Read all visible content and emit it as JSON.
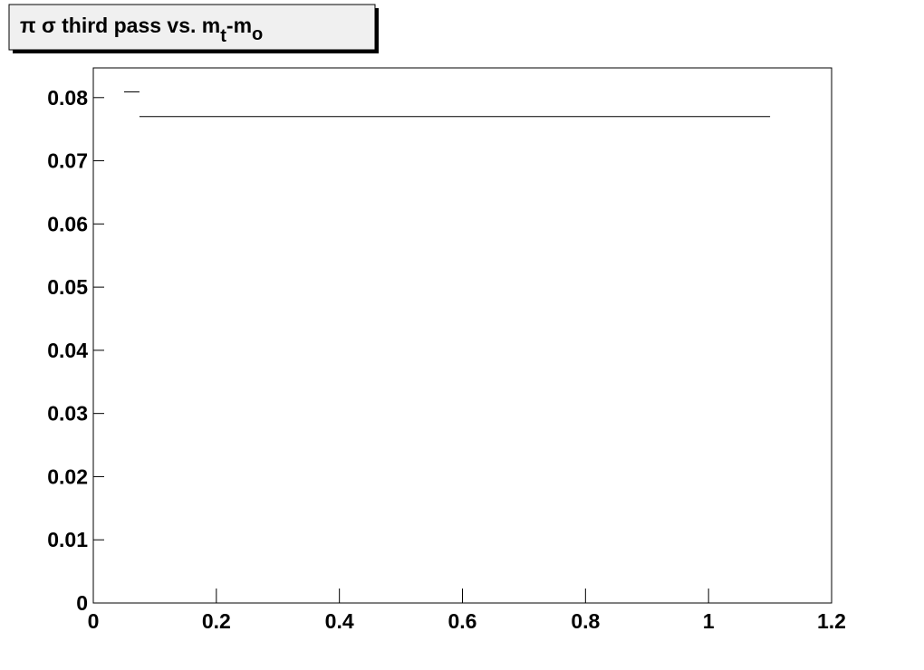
{
  "chart_data": {
    "type": "histogram",
    "title": [
      "π σ third pass vs. m",
      "t",
      "-m",
      "o"
    ],
    "bins": [
      0.05,
      0.075,
      1.1
    ],
    "values": [
      0.0809,
      0.077
    ],
    "color": "#000000",
    "xlim": [
      0,
      1.2
    ],
    "xticks": [
      0,
      0.2,
      0.4,
      0.6,
      0.8,
      1,
      1.2
    ],
    "ylim": [
      0,
      0.0847
    ],
    "yticks": [
      0,
      0.01,
      0.02,
      0.03,
      0.04,
      0.05,
      0.06,
      0.07,
      0.08
    ]
  }
}
